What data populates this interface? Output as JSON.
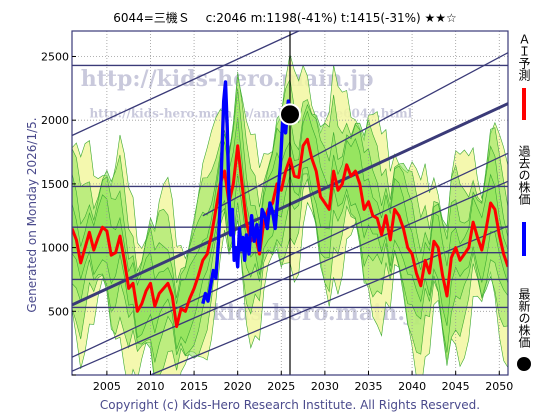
{
  "header": {
    "title": "6044=三機Ｓ　 c:2046  m:1198(-41%)  t:1415(-31%)  ★★☆"
  },
  "side_label": "Generated on Monday 2026/1/5.",
  "copyright": "Copyright (c) Kids-Hero Research Institute. All Rights Reserved.",
  "watermarks": [
    "http://kids-hero.main.jp",
    "http://kids-hero.main.jp/analysis/code6044.html",
    "kids-hero.main.jp"
  ],
  "legend": [
    {
      "label": "ＡＩ予測",
      "color": "#ff0000"
    },
    {
      "label": "過去の株価",
      "color": "#0000ff"
    },
    {
      "label": "最新の株価",
      "color": "#000000"
    }
  ],
  "colors": {
    "prediction": "#ff0000",
    "past_price": "#0000ff",
    "latest_price": "#000000",
    "band_fill": "#8fe35a",
    "band_fill_light": "#f2f7a0",
    "channel_line": "#3a3a78",
    "frame": "#3a3a78"
  },
  "chart_data": {
    "type": "line",
    "title": "6044=三機Ｓ　 c:2046  m:1198(-41%)  t:1415(-31%)  ★★☆",
    "xlim": [
      2001,
      2051
    ],
    "ylim": [
      0,
      2700
    ],
    "x_ticks": [
      2005,
      2010,
      2015,
      2020,
      2025,
      2030,
      2035,
      2040,
      2045,
      2050
    ],
    "y_ticks": [
      0,
      500,
      1000,
      1500,
      2000,
      2500
    ],
    "grid": true,
    "legend_position": "right",
    "latest_point": {
      "x": 2026.0,
      "y": 2046
    },
    "horizontal_lines": [
      530,
      750,
      960,
      1160,
      1480,
      2430
    ],
    "channel_lines": [
      {
        "x1": 2001,
        "y1": 550,
        "x2": 2051,
        "y2": 2130,
        "thick": true
      },
      {
        "x1": 2001,
        "y1": 1880,
        "x2": 2027,
        "y2": 2700,
        "thick": false
      },
      {
        "x1": 2001,
        "y1": 140,
        "x2": 2051,
        "y2": 1740,
        "thick": false
      },
      {
        "x1": 2001,
        "y1": 30,
        "x2": 2051,
        "y2": 1520,
        "thick": false
      },
      {
        "x1": 2010,
        "y1": 0,
        "x2": 2051,
        "y2": 1170,
        "thick": false
      },
      {
        "x1": 2016,
        "y1": 1250,
        "x2": 2051,
        "y2": 2530,
        "thick": false
      }
    ],
    "series": [
      {
        "name": "ＡＩ予測",
        "color": "#ff0000",
        "x": [
          2001.0,
          2001.5,
          2002.0,
          2002.5,
          2003.0,
          2003.5,
          2004.0,
          2004.5,
          2005.0,
          2005.5,
          2006.0,
          2006.5,
          2007.0,
          2007.5,
          2008.0,
          2008.5,
          2009.0,
          2009.5,
          2010.0,
          2010.5,
          2011.0,
          2011.5,
          2012.0,
          2012.5,
          2013.0,
          2013.5,
          2014.0,
          2014.5,
          2015.0,
          2015.5,
          2016.0,
          2016.5,
          2017.0,
          2017.5,
          2018.0,
          2018.5,
          2019.0,
          2019.5,
          2020.0,
          2020.5,
          2021.0,
          2021.5,
          2022.0,
          2022.5,
          2023.0,
          2023.5,
          2024.0,
          2024.5,
          2025.0,
          2025.5,
          2026.0,
          2026.5,
          2027.0,
          2027.5,
          2028.0,
          2028.5,
          2029.0,
          2029.5,
          2030.0,
          2030.5,
          2031.0,
          2031.5,
          2032.0,
          2032.5,
          2033.0,
          2033.5,
          2034.0,
          2034.5,
          2035.0,
          2035.5,
          2036.0,
          2036.5,
          2037.0,
          2037.5,
          2038.0,
          2038.5,
          2039.0,
          2039.5,
          2040.0,
          2040.5,
          2041.0,
          2041.5,
          2042.0,
          2042.5,
          2043.0,
          2043.5,
          2044.0,
          2044.5,
          2045.0,
          2045.5,
          2046.0,
          2046.5,
          2047.0,
          2047.5,
          2048.0,
          2048.5,
          2049.0,
          2049.5,
          2050.0,
          2050.5,
          2051.0
        ],
        "values": [
          1150,
          1060,
          880,
          1000,
          1120,
          980,
          1080,
          1160,
          1130,
          940,
          960,
          1090,
          900,
          680,
          720,
          500,
          560,
          660,
          720,
          540,
          640,
          680,
          720,
          620,
          380,
          520,
          500,
          600,
          680,
          780,
          900,
          950,
          1100,
          1300,
          1500,
          1600,
          1350,
          1500,
          1800,
          1500,
          1200,
          1050,
          1100,
          950,
          1200,
          1300,
          1350,
          1500,
          1450,
          1600,
          1700,
          1560,
          1550,
          1800,
          1850,
          1700,
          1600,
          1400,
          1350,
          1300,
          1600,
          1450,
          1500,
          1650,
          1560,
          1600,
          1500,
          1300,
          1360,
          1250,
          1230,
          1100,
          1250,
          1060,
          1300,
          1250,
          1150,
          1000,
          950,
          800,
          700,
          900,
          800,
          1050,
          1000,
          780,
          620,
          920,
          1000,
          900,
          950,
          1000,
          1200,
          1080,
          980,
          1150,
          1350,
          1300,
          1100,
          950,
          850
        ]
      },
      {
        "name": "過去の株価",
        "color": "#0000ff",
        "x": [
          2016.0,
          2016.3,
          2016.6,
          2016.9,
          2017.2,
          2017.5,
          2017.8,
          2018.0,
          2018.2,
          2018.4,
          2018.6,
          2018.8,
          2019.0,
          2019.2,
          2019.4,
          2019.6,
          2019.8,
          2020.0,
          2020.2,
          2020.4,
          2020.6,
          2020.8,
          2021.0,
          2021.3,
          2021.6,
          2021.9,
          2022.2,
          2022.5,
          2022.8,
          2023.1,
          2023.4,
          2023.7,
          2024.0,
          2024.3,
          2024.6,
          2024.9,
          2025.2,
          2025.5,
          2025.8,
          2026.0
        ],
        "values": [
          560,
          640,
          580,
          700,
          820,
          760,
          1050,
          1350,
          1750,
          2150,
          2300,
          1950,
          1400,
          1100,
          1300,
          900,
          1000,
          850,
          1150,
          980,
          1080,
          900,
          1100,
          950,
          1250,
          1050,
          1180,
          980,
          1300,
          1250,
          1150,
          1350,
          1280,
          1150,
          1400,
          1650,
          2050,
          1900,
          2150,
          2046
        ]
      }
    ]
  }
}
